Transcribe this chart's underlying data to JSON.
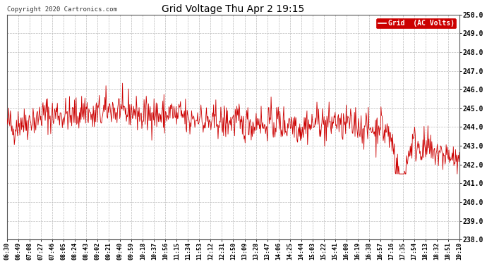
{
  "title": "Grid Voltage Thu Apr 2 19:15",
  "copyright": "Copyright 2020 Cartronics.com",
  "legend_label": "Grid  (AC Volts)",
  "line_color": "#cc0000",
  "background_color": "#ffffff",
  "grid_color": "#bbbbbb",
  "ylim": [
    238.0,
    250.0
  ],
  "yticks": [
    238.0,
    239.0,
    240.0,
    241.0,
    242.0,
    243.0,
    244.0,
    245.0,
    246.0,
    247.0,
    248.0,
    249.0,
    250.0
  ],
  "xtick_labels": [
    "06:30",
    "06:49",
    "07:08",
    "07:27",
    "07:46",
    "08:05",
    "08:24",
    "08:43",
    "09:02",
    "09:21",
    "09:40",
    "09:59",
    "10:18",
    "10:37",
    "10:56",
    "11:15",
    "11:34",
    "11:53",
    "12:12",
    "12:31",
    "12:50",
    "13:09",
    "13:28",
    "13:47",
    "14:06",
    "14:25",
    "14:44",
    "15:03",
    "15:22",
    "15:41",
    "16:00",
    "16:19",
    "16:38",
    "16:57",
    "17:16",
    "17:35",
    "17:54",
    "18:13",
    "18:32",
    "18:51",
    "19:10"
  ],
  "num_points": 820,
  "seed": 42,
  "figsize": [
    6.9,
    3.75
  ],
  "dpi": 100
}
